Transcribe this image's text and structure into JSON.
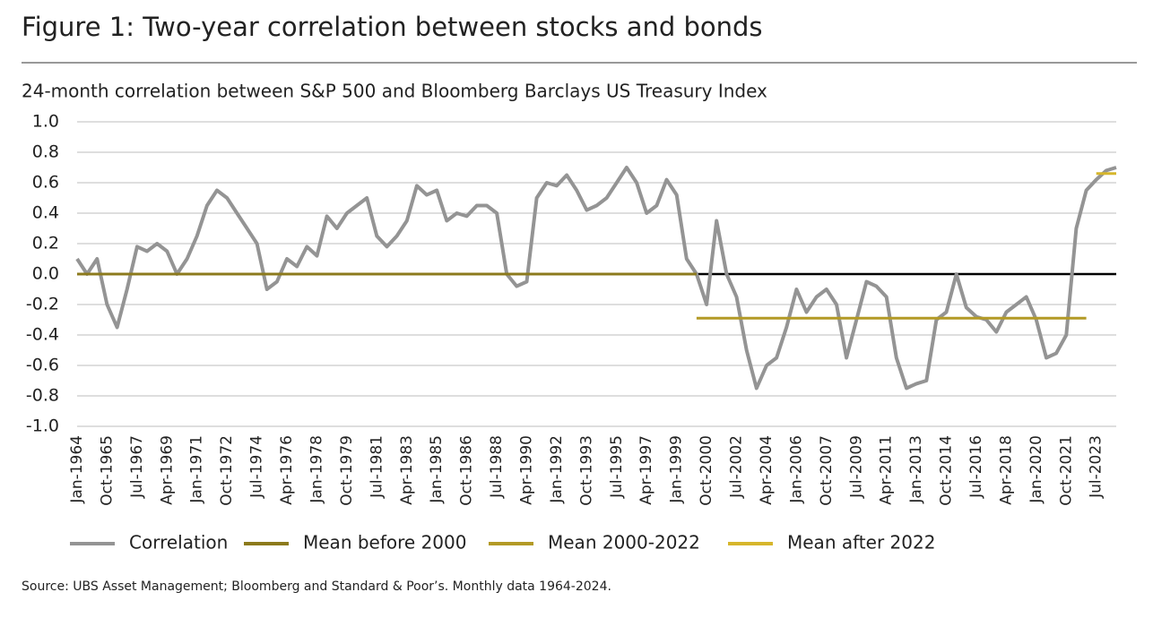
{
  "chart_data": {
    "type": "line",
    "title": "Figure 1: Two-year correlation between stocks and bonds",
    "subtitle": "24-month correlation between S&P 500 and Bloomberg Barclays US Treasury Index",
    "source": "Source: UBS Asset Management; Bloomberg and Standard & Poor’s. Monthly data 1964-2024.",
    "categories": [
      "Jan-1964",
      null,
      null,
      "Oct-1965",
      null,
      null,
      "Jul-1967",
      null,
      null,
      "Apr-1969",
      null,
      null,
      "Jan-1971",
      null,
      null,
      "Oct-1972",
      null,
      null,
      "Jul-1974",
      null,
      null,
      "Apr-1976",
      null,
      null,
      "Jan-1978",
      null,
      null,
      "Oct-1979",
      null,
      null,
      "Jul-1981",
      null,
      null,
      "Apr-1983",
      null,
      null,
      "Jan-1985",
      null,
      null,
      "Oct-1986",
      null,
      null,
      "Jul-1988",
      null,
      null,
      "Apr-1990",
      null,
      null,
      "Jan-1992",
      null,
      null,
      "Oct-1993",
      null,
      null,
      "Jul-1995",
      null,
      null,
      "Apr-1997",
      null,
      null,
      "Jan-1999",
      null,
      null,
      "Oct-2000",
      null,
      null,
      "Jul-2002",
      null,
      null,
      "Apr-2004",
      null,
      null,
      "Jan-2006",
      null,
      null,
      "Oct-2007",
      null,
      null,
      "Jul-2009",
      null,
      null,
      "Apr-2011",
      null,
      null,
      "Jan-2013",
      null,
      null,
      "Oct-2014",
      null,
      null,
      "Jul-2016",
      null,
      null,
      "Apr-2018",
      null,
      null,
      "Jan-2020",
      null,
      null,
      "Oct-2021",
      null,
      null,
      "Jul-2023",
      null,
      null
    ],
    "series": [
      {
        "name": "Correlation",
        "color": "#949494",
        "width": 4,
        "values": [
          0.1,
          0.0,
          0.1,
          -0.2,
          -0.35,
          -0.1,
          0.18,
          0.15,
          0.2,
          0.15,
          0.0,
          0.1,
          0.25,
          0.45,
          0.55,
          0.5,
          0.4,
          0.3,
          0.2,
          -0.1,
          -0.05,
          0.1,
          0.05,
          0.18,
          0.12,
          0.38,
          0.3,
          0.4,
          0.45,
          0.5,
          0.25,
          0.18,
          0.25,
          0.35,
          0.58,
          0.52,
          0.55,
          0.35,
          0.4,
          0.38,
          0.45,
          0.45,
          0.4,
          0.0,
          -0.08,
          -0.05,
          0.5,
          0.6,
          0.58,
          0.65,
          0.55,
          0.42,
          0.45,
          0.5,
          0.6,
          0.7,
          0.6,
          0.4,
          0.45,
          0.62,
          0.52,
          0.1,
          0.0,
          -0.2,
          0.35,
          0.0,
          -0.15,
          -0.5,
          -0.75,
          -0.6,
          -0.55,
          -0.35,
          -0.1,
          -0.25,
          -0.15,
          -0.1,
          -0.2,
          -0.55,
          -0.3,
          -0.05,
          -0.08,
          -0.15,
          -0.55,
          -0.75,
          -0.72,
          -0.7,
          -0.3,
          -0.25,
          0.0,
          -0.22,
          -0.28,
          -0.3,
          -0.38,
          -0.25,
          -0.2,
          -0.15,
          -0.3,
          -0.55,
          -0.52,
          -0.4,
          0.3,
          0.55,
          0.62,
          0.68,
          0.7
        ]
      },
      {
        "name": "Mean before 2000",
        "color": "#8c7a1c",
        "width": 3,
        "values": [
          0,
          0,
          0,
          0,
          0,
          0,
          0,
          0,
          0,
          0,
          0,
          0,
          0,
          0,
          0,
          0,
          0,
          0,
          0,
          0,
          0,
          0,
          0,
          0,
          0,
          0,
          0,
          0,
          0,
          0,
          0,
          0,
          0,
          0,
          0,
          0,
          0,
          0,
          0,
          0,
          0,
          0,
          0,
          0,
          0,
          0,
          0,
          0,
          0,
          0,
          0,
          0,
          0,
          0,
          0,
          0,
          0,
          0,
          0,
          0,
          0,
          0,
          0,
          null,
          null,
          null,
          null,
          null,
          null,
          null,
          null,
          null,
          null,
          null,
          null,
          null,
          null,
          null,
          null,
          null,
          null,
          null,
          null,
          null,
          null,
          null,
          null,
          null,
          null,
          null,
          null,
          null,
          null,
          null,
          null,
          null,
          null,
          null,
          null,
          null,
          null,
          null,
          null,
          null,
          null
        ]
      },
      {
        "name": "Mean 2000-2022",
        "color": "#b39a26",
        "width": 3,
        "values": [
          null,
          null,
          null,
          null,
          null,
          null,
          null,
          null,
          null,
          null,
          null,
          null,
          null,
          null,
          null,
          null,
          null,
          null,
          null,
          null,
          null,
          null,
          null,
          null,
          null,
          null,
          null,
          null,
          null,
          null,
          null,
          null,
          null,
          null,
          null,
          null,
          null,
          null,
          null,
          null,
          null,
          null,
          null,
          null,
          null,
          null,
          null,
          null,
          null,
          null,
          null,
          null,
          null,
          null,
          null,
          null,
          null,
          null,
          null,
          null,
          null,
          null,
          -0.29,
          -0.29,
          -0.29,
          -0.29,
          -0.29,
          -0.29,
          -0.29,
          -0.29,
          -0.29,
          -0.29,
          -0.29,
          -0.29,
          -0.29,
          -0.29,
          -0.29,
          -0.29,
          -0.29,
          -0.29,
          -0.29,
          -0.29,
          -0.29,
          -0.29,
          -0.29,
          -0.29,
          -0.29,
          -0.29,
          -0.29,
          -0.29,
          -0.29,
          -0.29,
          -0.29,
          -0.29,
          -0.29,
          -0.29,
          -0.29,
          -0.29,
          -0.29,
          -0.29,
          -0.29,
          -0.29,
          null,
          null,
          null
        ]
      },
      {
        "name": "Mean after 2022",
        "color": "#d6b62c",
        "width": 3,
        "values": [
          null,
          null,
          null,
          null,
          null,
          null,
          null,
          null,
          null,
          null,
          null,
          null,
          null,
          null,
          null,
          null,
          null,
          null,
          null,
          null,
          null,
          null,
          null,
          null,
          null,
          null,
          null,
          null,
          null,
          null,
          null,
          null,
          null,
          null,
          null,
          null,
          null,
          null,
          null,
          null,
          null,
          null,
          null,
          null,
          null,
          null,
          null,
          null,
          null,
          null,
          null,
          null,
          null,
          null,
          null,
          null,
          null,
          null,
          null,
          null,
          null,
          null,
          null,
          null,
          null,
          null,
          null,
          null,
          null,
          null,
          null,
          null,
          null,
          null,
          null,
          null,
          null,
          null,
          null,
          null,
          null,
          null,
          null,
          null,
          null,
          null,
          null,
          null,
          null,
          null,
          null,
          null,
          null,
          null,
          null,
          null,
          null,
          null,
          null,
          null,
          null,
          null,
          0.66,
          0.66,
          0.66
        ]
      }
    ],
    "ylim": [
      -1,
      1
    ],
    "yticks": [
      {
        "value": 1,
        "label": "1.0"
      },
      0.8,
      0.6,
      0.4,
      0.2,
      {
        "value": 0,
        "label": "0.0"
      },
      -0.2,
      -0.4,
      -0.6,
      -0.8,
      {
        "value": -1,
        "label": "-1.0"
      }
    ],
    "grid": true
  }
}
